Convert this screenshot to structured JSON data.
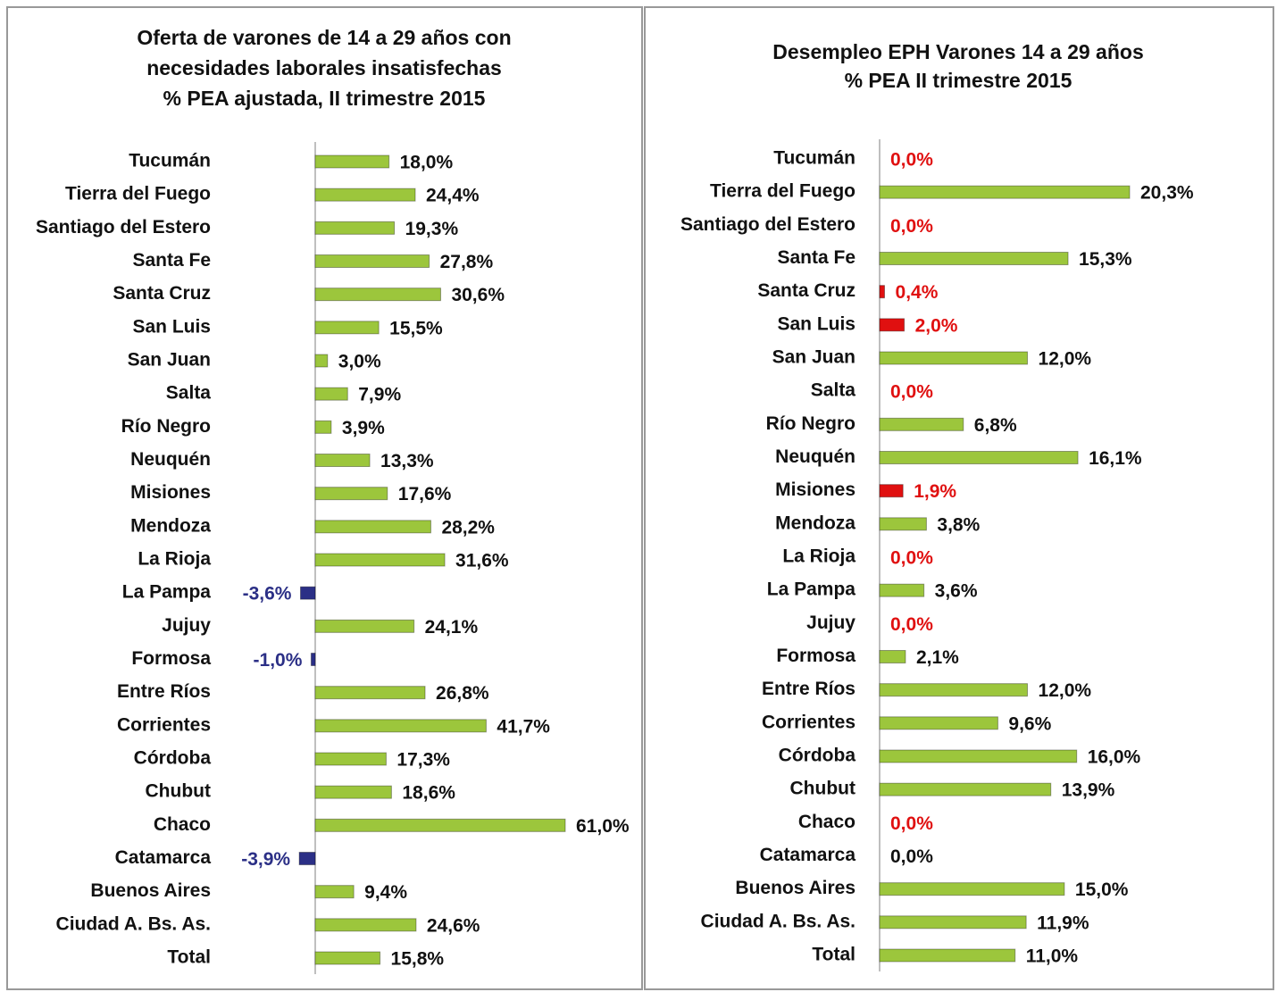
{
  "chart_data": [
    {
      "type": "bar",
      "orientation": "horizontal",
      "title": [
        "Oferta de varones de 14 a 29 años con",
        "necesidades laborales insatisfechas",
        "% PEA ajustada, II trimestre 2015"
      ],
      "categories": [
        "Tucumán",
        "Tierra del Fuego",
        "Santiago del Estero",
        "Santa Fe",
        "Santa Cruz",
        "San Luis",
        "San Juan",
        "Salta",
        "Río Negro",
        "Neuquén",
        "Misiones",
        "Mendoza",
        "La Rioja",
        "La Pampa",
        "Jujuy",
        "Formosa",
        "Entre Ríos",
        "Corrientes",
        "Córdoba",
        "Chubut",
        "Chaco",
        "Catamarca",
        "Buenos Aires",
        "Ciudad A. Bs. As.",
        "Total"
      ],
      "values": [
        18.0,
        24.4,
        19.3,
        27.8,
        30.6,
        15.5,
        3.0,
        7.9,
        3.9,
        13.3,
        17.6,
        28.2,
        31.6,
        -3.6,
        24.1,
        -1.0,
        26.8,
        41.7,
        17.3,
        18.6,
        61.0,
        -3.9,
        9.4,
        24.6,
        15.8
      ],
      "value_labels": [
        "18,0%",
        "24,4%",
        "19,3%",
        "27,8%",
        "30,6%",
        "15,5%",
        "3,0%",
        "7,9%",
        "3,9%",
        "13,3%",
        "17,6%",
        "28,2%",
        "31,6%",
        "-3,6%",
        "24,1%",
        "-1,0%",
        "26,8%",
        "41,7%",
        "17,3%",
        "18,6%",
        "61,0%",
        "-3,9%",
        "9,4%",
        "24,6%",
        "15,8%"
      ],
      "colors": [
        "#9cc63c",
        "#9cc63c",
        "#9cc63c",
        "#9cc63c",
        "#9cc63c",
        "#9cc63c",
        "#9cc63c",
        "#9cc63c",
        "#9cc63c",
        "#9cc63c",
        "#9cc63c",
        "#9cc63c",
        "#9cc63c",
        "#2b2f86",
        "#9cc63c",
        "#2b2f86",
        "#9cc63c",
        "#9cc63c",
        "#9cc63c",
        "#9cc63c",
        "#9cc63c",
        "#2b2f86",
        "#9cc63c",
        "#9cc63c",
        "#9cc63c"
      ],
      "label_colors": [
        "#111",
        "#111",
        "#111",
        "#111",
        "#111",
        "#111",
        "#111",
        "#111",
        "#111",
        "#111",
        "#111",
        "#111",
        "#111",
        "#2b2f86",
        "#111",
        "#2b2f86",
        "#111",
        "#111",
        "#111",
        "#111",
        "#111",
        "#2b2f86",
        "#111",
        "#111",
        "#111"
      ]
    },
    {
      "type": "bar",
      "orientation": "horizontal",
      "title": [
        "Desempleo EPH Varones 14 a 29 años",
        "% PEA II trimestre 2015"
      ],
      "categories": [
        "Tucumán",
        "Tierra del Fuego",
        "Santiago del Estero",
        "Santa Fe",
        "Santa Cruz",
        "San Luis",
        "San Juan",
        "Salta",
        "Río Negro",
        "Neuquén",
        "Misiones",
        "Mendoza",
        "La Rioja",
        "La Pampa",
        "Jujuy",
        "Formosa",
        "Entre Ríos",
        "Corrientes",
        "Córdoba",
        "Chubut",
        "Chaco",
        "Catamarca",
        "Buenos Aires",
        "Ciudad A. Bs. As.",
        "Total"
      ],
      "values": [
        0.0,
        20.3,
        0.0,
        15.3,
        0.4,
        2.0,
        12.0,
        0.0,
        6.8,
        16.1,
        1.9,
        3.8,
        0.0,
        3.6,
        0.0,
        2.1,
        12.0,
        9.6,
        16.0,
        13.9,
        0.0,
        0.0,
        15.0,
        11.9,
        11.0
      ],
      "value_labels": [
        "0,0%",
        "20,3%",
        "0,0%",
        "15,3%",
        "0,4%",
        "2,0%",
        "12,0%",
        "0,0%",
        "6,8%",
        "16,1%",
        "1,9%",
        "3,8%",
        "0,0%",
        "3,6%",
        "0,0%",
        "2,1%",
        "12,0%",
        "9,6%",
        "16,0%",
        "13,9%",
        "0,0%",
        "0,0%",
        "15,0%",
        "11,9%",
        "11,0%"
      ],
      "colors": [
        "#9cc63c",
        "#9cc63c",
        "#9cc63c",
        "#9cc63c",
        "#e01010",
        "#e01010",
        "#9cc63c",
        "#9cc63c",
        "#9cc63c",
        "#9cc63c",
        "#e01010",
        "#9cc63c",
        "#9cc63c",
        "#9cc63c",
        "#9cc63c",
        "#9cc63c",
        "#9cc63c",
        "#9cc63c",
        "#9cc63c",
        "#9cc63c",
        "#9cc63c",
        "#9cc63c",
        "#9cc63c",
        "#9cc63c",
        "#9cc63c"
      ],
      "label_colors": [
        "#e01010",
        "#111",
        "#e01010",
        "#111",
        "#e01010",
        "#e01010",
        "#111",
        "#e01010",
        "#111",
        "#111",
        "#e01010",
        "#111",
        "#e01010",
        "#111",
        "#e01010",
        "#111",
        "#111",
        "#111",
        "#111",
        "#111",
        "#e01010",
        "#111",
        "#111",
        "#111",
        "#111"
      ]
    }
  ]
}
